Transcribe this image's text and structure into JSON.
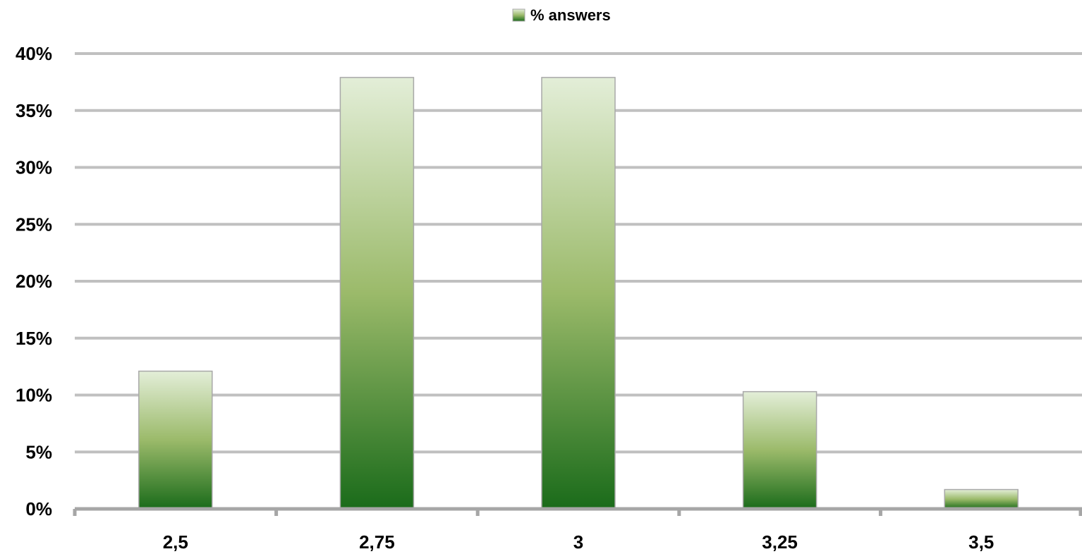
{
  "chart_data": {
    "type": "bar",
    "categories": [
      "2,5",
      "2,75",
      "3",
      "3,25",
      "3,5"
    ],
    "series": [
      {
        "name": "% answers",
        "values": [
          12.1,
          37.9,
          37.9,
          10.3,
          1.7
        ]
      }
    ],
    "ylim": [
      0,
      40
    ],
    "yticks": [
      0,
      5,
      10,
      15,
      20,
      25,
      30,
      35,
      40
    ],
    "ytick_labels": [
      "0%",
      "5%",
      "10%",
      "15%",
      "20%",
      "25%",
      "30%",
      "35%",
      "40%"
    ],
    "grid": true,
    "legend_position": "top-center",
    "colors": {
      "bar_top": "#e3eed8",
      "bar_mid": "#9bba6a",
      "bar_bottom": "#1a6b1a",
      "bar_border": "#a8a8a8",
      "grid": "#c0c0c0",
      "axis": "#a6a6a6"
    }
  }
}
